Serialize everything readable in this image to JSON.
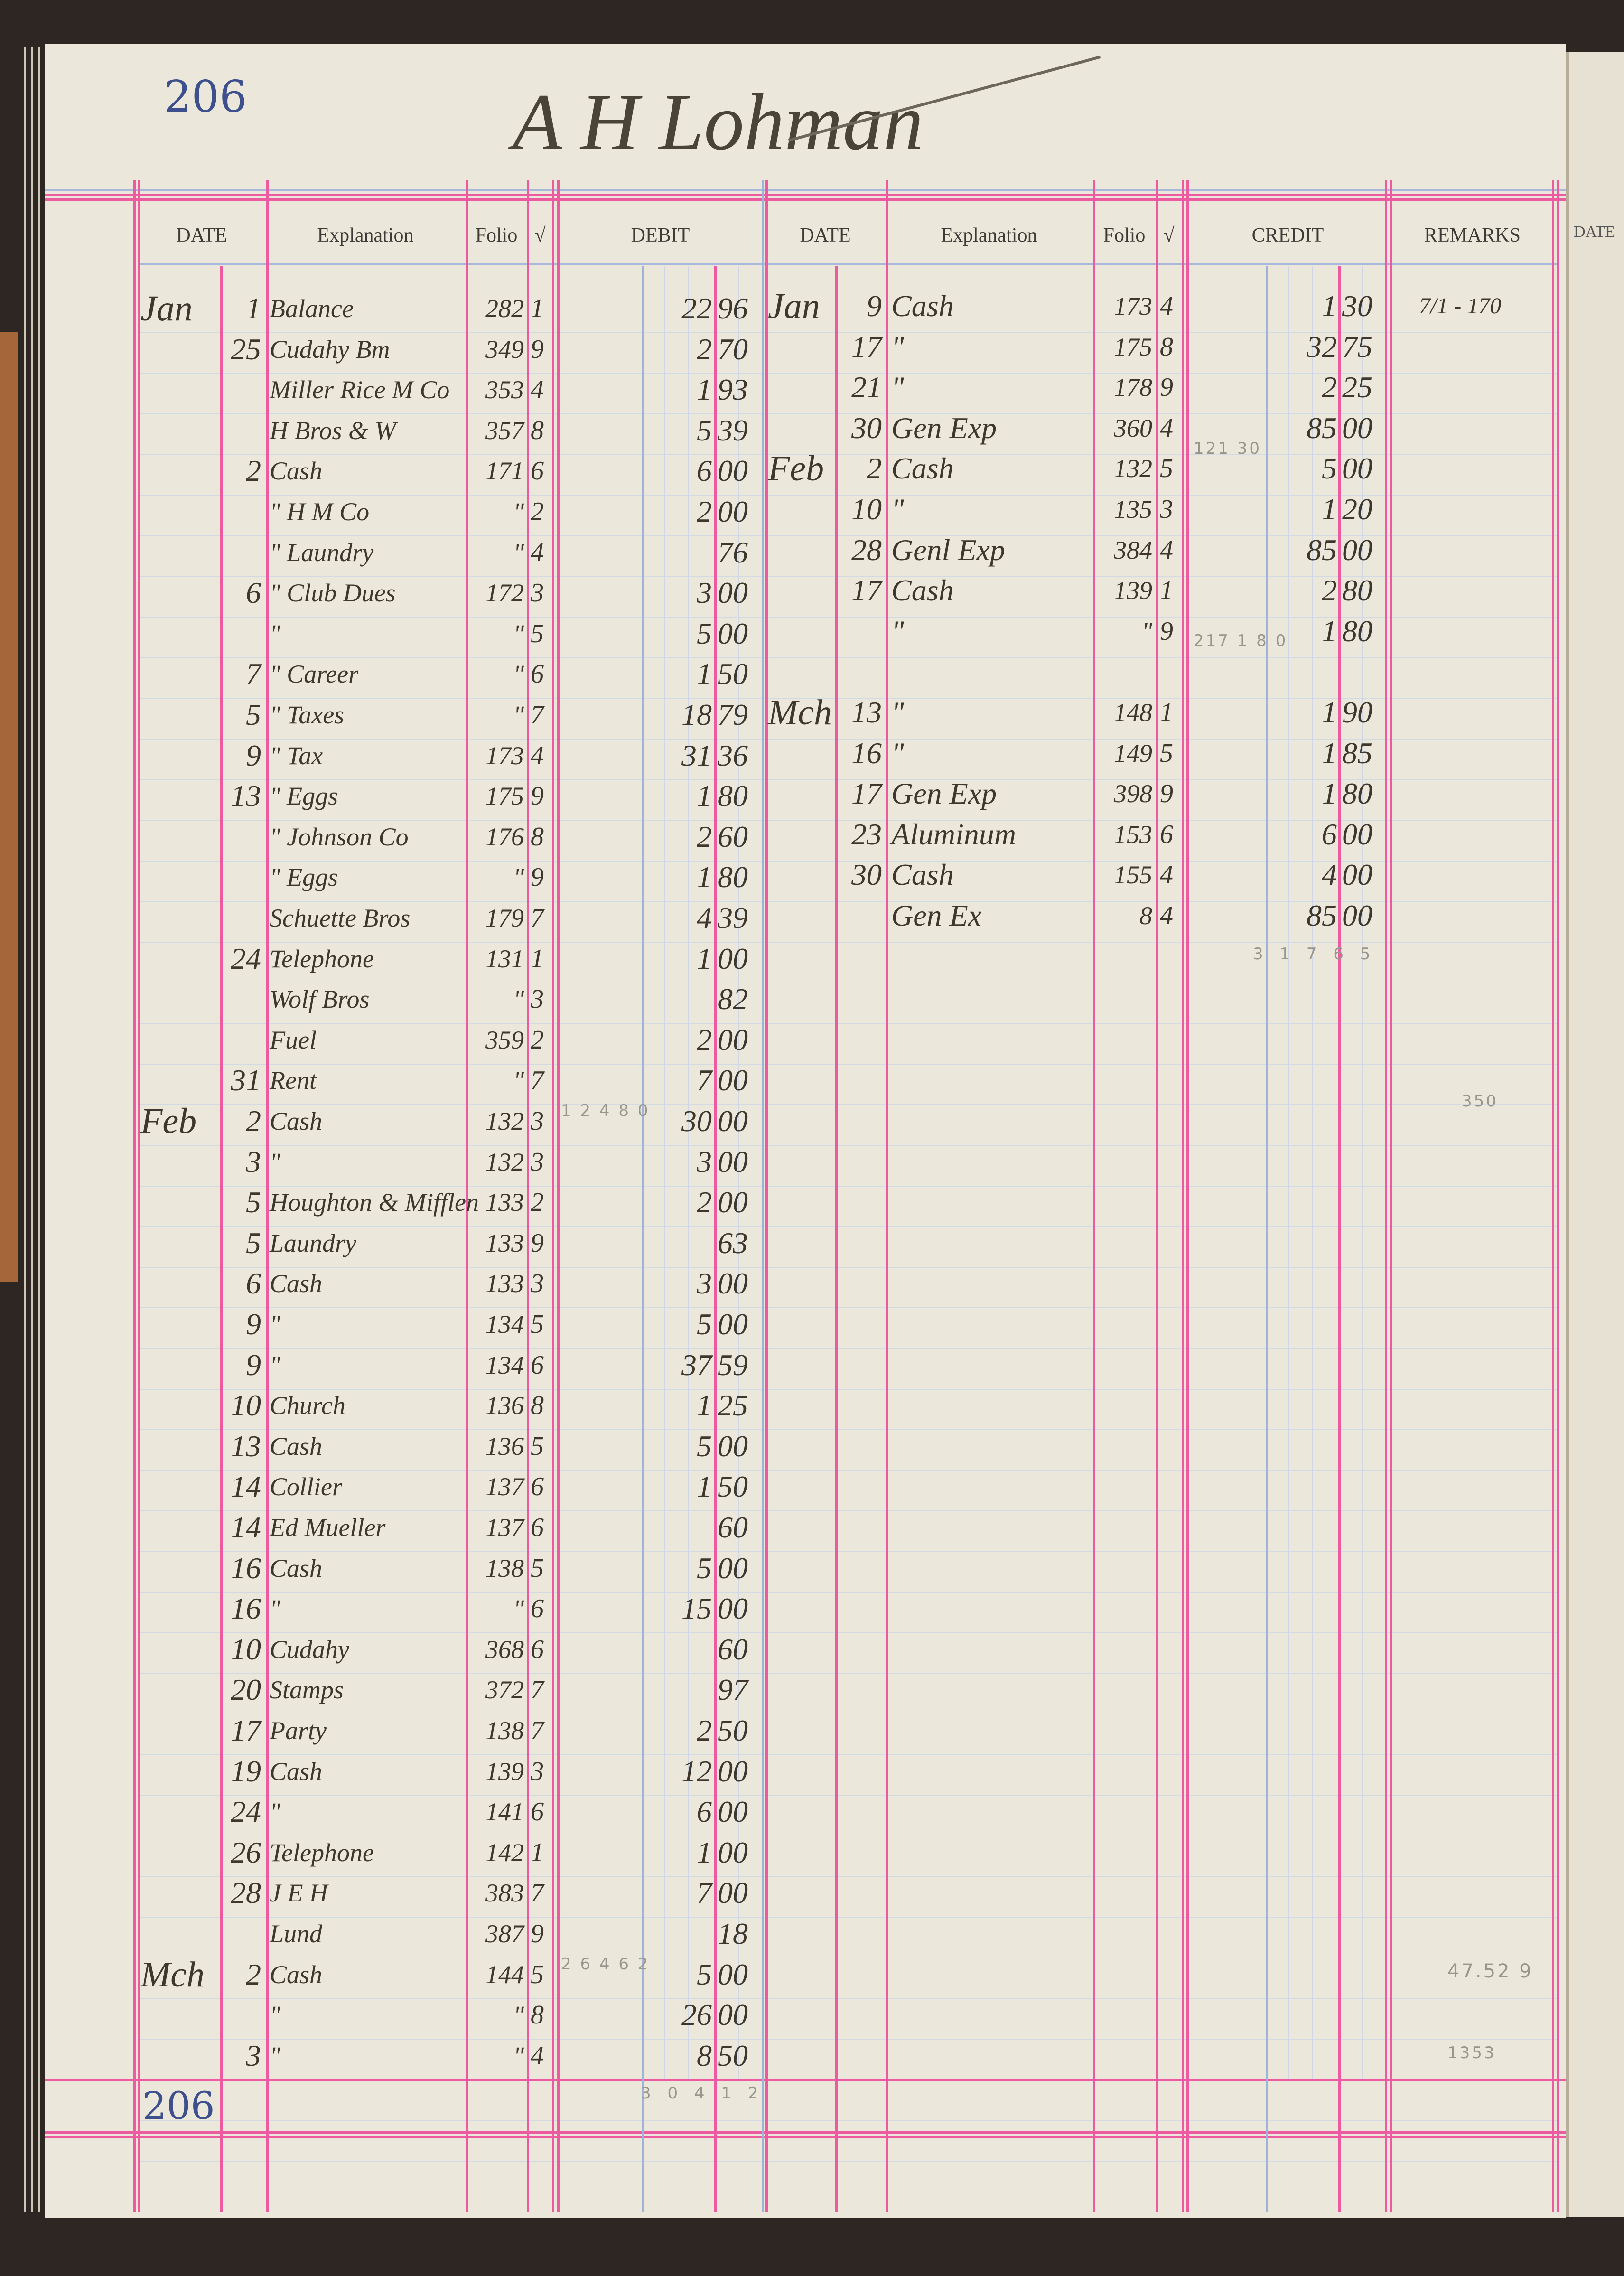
{
  "page_number": "206",
  "account_name": "A H Lohman",
  "headers": {
    "date": "DATE",
    "explanation": "Explanation",
    "folio": "Folio",
    "check": "√",
    "debit": "DEBIT",
    "credit": "CREDIT",
    "remarks": "REMARKS"
  },
  "colors": {
    "red_rule": "#ec5a9f",
    "blue_rule": "#9fb2d9",
    "paper": "#ebe7da",
    "ink": "#3f372e",
    "page_number_blue": "#3d4f8c"
  },
  "debit_entries": [
    {
      "month": "Jan",
      "day": "1",
      "explanation": "Balance",
      "folio": "282",
      "check": "1",
      "dollars": "22",
      "cents": "96"
    },
    {
      "month": "",
      "day": "25",
      "explanation": "Cudahy Bm",
      "folio": "349",
      "check": "9",
      "dollars": "2",
      "cents": "70"
    },
    {
      "month": "",
      "day": "",
      "explanation": "Miller Rice M Co",
      "folio": "353",
      "check": "4",
      "dollars": "1",
      "cents": "93"
    },
    {
      "month": "",
      "day": "",
      "explanation": "H Bros & W",
      "folio": "357",
      "check": "8",
      "dollars": "5",
      "cents": "39"
    },
    {
      "month": "",
      "day": "2",
      "explanation": "Cash",
      "folio": "171",
      "check": "6",
      "dollars": "6",
      "cents": "00"
    },
    {
      "month": "",
      "day": "",
      "explanation": "\" H M Co",
      "folio": "\"",
      "check": "2",
      "dollars": "2",
      "cents": "00"
    },
    {
      "month": "",
      "day": "",
      "explanation": "\" Laundry",
      "folio": "\"",
      "check": "4",
      "dollars": "",
      "cents": "76"
    },
    {
      "month": "",
      "day": "6",
      "explanation": "\" Club Dues",
      "folio": "172",
      "check": "3",
      "dollars": "3",
      "cents": "00"
    },
    {
      "month": "",
      "day": "",
      "explanation": "\"",
      "folio": "\"",
      "check": "5",
      "dollars": "5",
      "cents": "00"
    },
    {
      "month": "",
      "day": "7",
      "explanation": "\" Career",
      "folio": "\"",
      "check": "6",
      "dollars": "1",
      "cents": "50"
    },
    {
      "month": "",
      "day": "5",
      "explanation": "\" Taxes",
      "folio": "\"",
      "check": "7",
      "dollars": "18",
      "cents": "79"
    },
    {
      "month": "",
      "day": "9",
      "explanation": "\" Tax",
      "folio": "173",
      "check": "4",
      "dollars": "31",
      "cents": "36"
    },
    {
      "month": "",
      "day": "13",
      "explanation": "\" Eggs",
      "folio": "175",
      "check": "9",
      "dollars": "1",
      "cents": "80"
    },
    {
      "month": "",
      "day": "",
      "explanation": "\" Johnson Co",
      "folio": "176",
      "check": "8",
      "dollars": "2",
      "cents": "60"
    },
    {
      "month": "",
      "day": "",
      "explanation": "\" Eggs",
      "folio": "\"",
      "check": "9",
      "dollars": "1",
      "cents": "80"
    },
    {
      "month": "",
      "day": "",
      "explanation": "Schuette Bros",
      "folio": "179",
      "check": "7",
      "dollars": "4",
      "cents": "39"
    },
    {
      "month": "",
      "day": "24",
      "explanation": "Telephone",
      "folio": "131",
      "check": "1",
      "dollars": "1",
      "cents": "00"
    },
    {
      "month": "",
      "day": "",
      "explanation": "Wolf Bros",
      "folio": "\"",
      "check": "3",
      "dollars": "",
      "cents": "82"
    },
    {
      "month": "",
      "day": "",
      "explanation": "Fuel",
      "folio": "359",
      "check": "2",
      "dollars": "2",
      "cents": "00"
    },
    {
      "month": "",
      "day": "31",
      "explanation": "Rent",
      "folio": "\"",
      "check": "7",
      "dollars": "7",
      "cents": "00"
    },
    {
      "month": "Feb",
      "day": "2",
      "explanation": "Cash",
      "folio": "132",
      "check": "3",
      "dollars": "30",
      "cents": "00"
    },
    {
      "month": "",
      "day": "3",
      "explanation": "\"",
      "folio": "132",
      "check": "3",
      "dollars": "3",
      "cents": "00"
    },
    {
      "month": "",
      "day": "5",
      "explanation": "Houghton & Mifflen",
      "folio": "133",
      "check": "2",
      "dollars": "2",
      "cents": "00"
    },
    {
      "month": "",
      "day": "5",
      "explanation": "Laundry",
      "folio": "133",
      "check": "9",
      "dollars": "",
      "cents": "63"
    },
    {
      "month": "",
      "day": "6",
      "explanation": "Cash",
      "folio": "133",
      "check": "3",
      "dollars": "3",
      "cents": "00"
    },
    {
      "month": "",
      "day": "9",
      "explanation": "\"",
      "folio": "134",
      "check": "5",
      "dollars": "5",
      "cents": "00"
    },
    {
      "month": "",
      "day": "9",
      "explanation": "\"",
      "folio": "134",
      "check": "6",
      "dollars": "37",
      "cents": "59"
    },
    {
      "month": "",
      "day": "10",
      "explanation": "Church",
      "folio": "136",
      "check": "8",
      "dollars": "1",
      "cents": "25"
    },
    {
      "month": "",
      "day": "13",
      "explanation": "Cash",
      "folio": "136",
      "check": "5",
      "dollars": "5",
      "cents": "00"
    },
    {
      "month": "",
      "day": "14",
      "explanation": "Collier",
      "folio": "137",
      "check": "6",
      "dollars": "1",
      "cents": "50"
    },
    {
      "month": "",
      "day": "14",
      "explanation": "Ed Mueller",
      "folio": "137",
      "check": "6",
      "dollars": "",
      "cents": "60"
    },
    {
      "month": "",
      "day": "16",
      "explanation": "Cash",
      "folio": "138",
      "check": "5",
      "dollars": "5",
      "cents": "00"
    },
    {
      "month": "",
      "day": "16",
      "explanation": "\"",
      "folio": "\"",
      "check": "6",
      "dollars": "15",
      "cents": "00"
    },
    {
      "month": "",
      "day": "10",
      "explanation": "Cudahy",
      "folio": "368",
      "check": "6",
      "dollars": "",
      "cents": "60"
    },
    {
      "month": "",
      "day": "20",
      "explanation": "Stamps",
      "folio": "372",
      "check": "7",
      "dollars": "",
      "cents": "97"
    },
    {
      "month": "",
      "day": "17",
      "explanation": "Party",
      "folio": "138",
      "check": "7",
      "dollars": "2",
      "cents": "50"
    },
    {
      "month": "",
      "day": "19",
      "explanation": "Cash",
      "folio": "139",
      "check": "3",
      "dollars": "12",
      "cents": "00"
    },
    {
      "month": "",
      "day": "24",
      "explanation": "\"",
      "folio": "141",
      "check": "6",
      "dollars": "6",
      "cents": "00"
    },
    {
      "month": "",
      "day": "26",
      "explanation": "Telephone",
      "folio": "142",
      "check": "1",
      "dollars": "1",
      "cents": "00"
    },
    {
      "month": "",
      "day": "28",
      "explanation": "J E H",
      "folio": "383",
      "check": "7",
      "dollars": "7",
      "cents": "00"
    },
    {
      "month": "",
      "day": "",
      "explanation": "Lund",
      "folio": "387",
      "check": "9",
      "dollars": "",
      "cents": "18"
    },
    {
      "month": "Mch",
      "day": "2",
      "explanation": "Cash",
      "folio": "144",
      "check": "5",
      "dollars": "5",
      "cents": "00"
    },
    {
      "month": "",
      "day": "",
      "explanation": "\"",
      "folio": "\"",
      "check": "8",
      "dollars": "26",
      "cents": "00"
    },
    {
      "month": "",
      "day": "3",
      "explanation": "\"",
      "folio": "\"",
      "check": "4",
      "dollars": "8",
      "cents": "50"
    }
  ],
  "credit_entries": [
    {
      "row": 0,
      "month": "Jan",
      "day": "9",
      "explanation": "Cash",
      "folio": "173",
      "check": "4",
      "dollars": "1",
      "cents": "30",
      "remarks": "7/1 - 170"
    },
    {
      "row": 1,
      "month": "",
      "day": "17",
      "explanation": "\"",
      "folio": "175",
      "check": "8",
      "dollars": "32",
      "cents": "75",
      "remarks": ""
    },
    {
      "row": 2,
      "month": "",
      "day": "21",
      "explanation": "\"",
      "folio": "178",
      "check": "9",
      "dollars": "2",
      "cents": "25",
      "remarks": ""
    },
    {
      "row": 3,
      "month": "",
      "day": "30",
      "explanation": "Gen Exp",
      "folio": "360",
      "check": "4",
      "dollars": "85",
      "cents": "00",
      "remarks": ""
    },
    {
      "row": 4,
      "month": "Feb",
      "day": "2",
      "explanation": "Cash",
      "folio": "132",
      "check": "5",
      "dollars": "5",
      "cents": "00",
      "remarks": ""
    },
    {
      "row": 5,
      "month": "",
      "day": "10",
      "explanation": "\"",
      "folio": "135",
      "check": "3",
      "dollars": "1",
      "cents": "20",
      "remarks": ""
    },
    {
      "row": 6,
      "month": "",
      "day": "28",
      "explanation": "Genl Exp",
      "folio": "384",
      "check": "4",
      "dollars": "85",
      "cents": "00",
      "remarks": ""
    },
    {
      "row": 7,
      "month": "",
      "day": "17",
      "explanation": "Cash",
      "folio": "139",
      "check": "1",
      "dollars": "2",
      "cents": "80",
      "remarks": ""
    },
    {
      "row": 8,
      "month": "",
      "day": "",
      "explanation": "\"",
      "folio": "\"",
      "check": "9",
      "dollars": "1",
      "cents": "80",
      "remarks": ""
    },
    {
      "row": 10,
      "month": "Mch",
      "day": "13",
      "explanation": "\"",
      "folio": "148",
      "check": "1",
      "dollars": "1",
      "cents": "90",
      "remarks": ""
    },
    {
      "row": 11,
      "month": "",
      "day": "16",
      "explanation": "\"",
      "folio": "149",
      "check": "5",
      "dollars": "1",
      "cents": "85",
      "remarks": ""
    },
    {
      "row": 12,
      "month": "",
      "day": "17",
      "explanation": "Gen Exp",
      "folio": "398",
      "check": "9",
      "dollars": "1",
      "cents": "80",
      "remarks": ""
    },
    {
      "row": 13,
      "month": "",
      "day": "23",
      "explanation": "Aluminum",
      "folio": "153",
      "check": "6",
      "dollars": "6",
      "cents": "00",
      "remarks": ""
    },
    {
      "row": 14,
      "month": "",
      "day": "30",
      "explanation": "Cash",
      "folio": "155",
      "check": "4",
      "dollars": "4",
      "cents": "00",
      "remarks": ""
    },
    {
      "row": 15,
      "month": "",
      "day": "",
      "explanation": "Gen Ex",
      "folio": "8",
      "check": "4",
      "dollars": "85",
      "cents": "00",
      "remarks": ""
    }
  ],
  "pencil_notes": {
    "credit_subtotal_1": "121 30",
    "credit_subtotal_2": "217 1 8 0",
    "credit_total": "3 1 7 6 5",
    "debit_subtotal_1": "1 2 4 8 0",
    "debit_subtotal_2": "2 6 4 6 2",
    "debit_total": "3 0 4 1 2",
    "remarks_1": "350",
    "remarks_2": "47.52 9",
    "remarks_3": "1353"
  },
  "right_page": {
    "date_header": "DATE"
  }
}
